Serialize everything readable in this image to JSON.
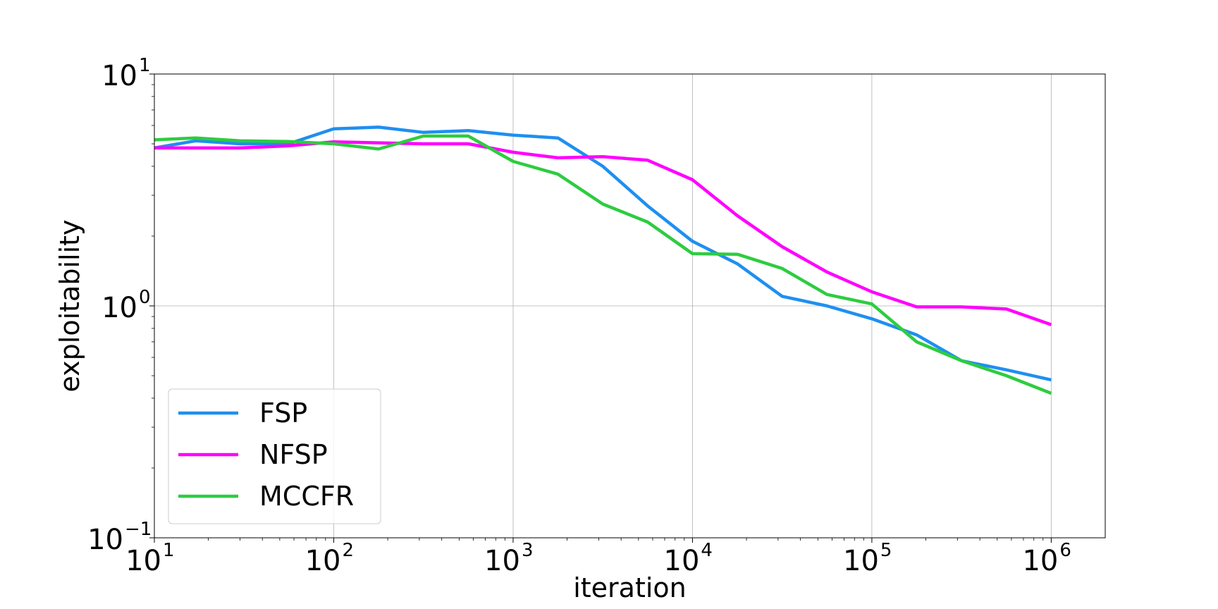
{
  "chart_data": {
    "type": "line",
    "title": "",
    "xlabel": "iteration",
    "ylabel": "exploitability",
    "xscale": "log",
    "yscale": "log",
    "xlim": [
      10,
      2000000
    ],
    "ylim": [
      0.1,
      10
    ],
    "grid": true,
    "legend_position": "lower-left",
    "x_ticks": [
      {
        "base": "10",
        "exp": "1",
        "value": 10
      },
      {
        "base": "10",
        "exp": "2",
        "value": 100
      },
      {
        "base": "10",
        "exp": "3",
        "value": 1000
      },
      {
        "base": "10",
        "exp": "4",
        "value": 10000
      },
      {
        "base": "10",
        "exp": "5",
        "value": 100000
      },
      {
        "base": "10",
        "exp": "6",
        "value": 1000000
      }
    ],
    "y_ticks": [
      {
        "base": "10",
        "exp": "−1",
        "value": 0.1
      },
      {
        "base": "10",
        "exp": "0",
        "value": 1
      },
      {
        "base": "10",
        "exp": "1",
        "value": 10
      }
    ],
    "series": [
      {
        "name": "FSP",
        "color": "#1f8ff0",
        "points": [
          [
            10,
            4.8
          ],
          [
            17,
            5.15
          ],
          [
            30,
            5.0
          ],
          [
            56,
            5.0
          ],
          [
            100,
            5.8
          ],
          [
            178,
            5.9
          ],
          [
            316,
            5.6
          ],
          [
            562,
            5.7
          ],
          [
            1000,
            5.45
          ],
          [
            1778,
            5.3
          ],
          [
            3162,
            4.0
          ],
          [
            5623,
            2.7
          ],
          [
            10000,
            1.9
          ],
          [
            17783,
            1.52
          ],
          [
            31623,
            1.1
          ],
          [
            56234,
            1.0
          ],
          [
            100000,
            0.88
          ],
          [
            177828,
            0.75
          ],
          [
            316228,
            0.58
          ],
          [
            562341,
            0.53
          ],
          [
            1000000,
            0.48
          ]
        ]
      },
      {
        "name": "NFSP",
        "color": "#ff00ff",
        "points": [
          [
            10,
            4.8
          ],
          [
            17,
            4.8
          ],
          [
            30,
            4.8
          ],
          [
            56,
            4.9
          ],
          [
            100,
            5.1
          ],
          [
            178,
            5.05
          ],
          [
            316,
            5.0
          ],
          [
            562,
            5.0
          ],
          [
            1000,
            4.6
          ],
          [
            1778,
            4.35
          ],
          [
            3162,
            4.4
          ],
          [
            5623,
            4.25
          ],
          [
            10000,
            3.5
          ],
          [
            17783,
            2.45
          ],
          [
            31623,
            1.8
          ],
          [
            56234,
            1.4
          ],
          [
            100000,
            1.15
          ],
          [
            177828,
            0.99
          ],
          [
            316228,
            0.99
          ],
          [
            562341,
            0.97
          ],
          [
            1000000,
            0.83
          ]
        ]
      },
      {
        "name": "MCCFR",
        "color": "#2ecc40",
        "points": [
          [
            10,
            5.2
          ],
          [
            17,
            5.3
          ],
          [
            30,
            5.15
          ],
          [
            56,
            5.12
          ],
          [
            100,
            5.0
          ],
          [
            178,
            4.75
          ],
          [
            316,
            5.4
          ],
          [
            562,
            5.4
          ],
          [
            1000,
            4.2
          ],
          [
            1778,
            3.7
          ],
          [
            3162,
            2.75
          ],
          [
            5623,
            2.3
          ],
          [
            10000,
            1.68
          ],
          [
            17783,
            1.67
          ],
          [
            31623,
            1.45
          ],
          [
            56234,
            1.12
          ],
          [
            100000,
            1.02
          ],
          [
            177828,
            0.7
          ],
          [
            316228,
            0.58
          ],
          [
            562341,
            0.5
          ],
          [
            1000000,
            0.42
          ]
        ]
      }
    ]
  }
}
